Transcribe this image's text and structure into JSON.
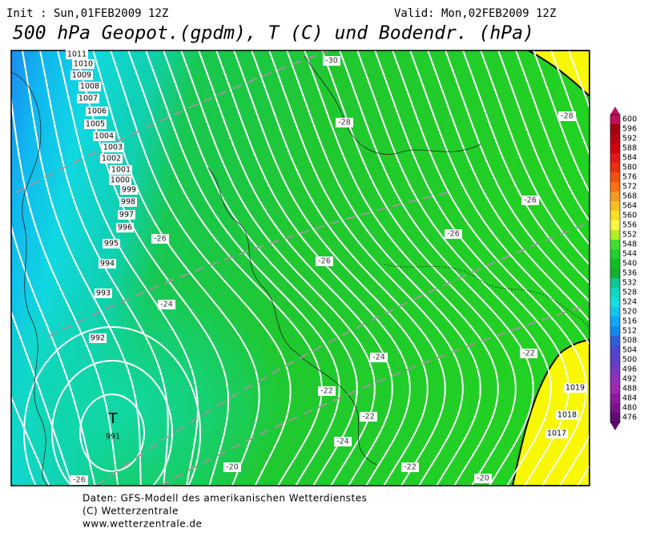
{
  "header": {
    "init": "Init : Sun,01FEB2009 12Z",
    "valid": "Valid: Mon,02FEB2009 12Z",
    "title": "500 hPa Geopot.(gpdm), T (C) und Bodendr. (hPa)"
  },
  "colorbar": {
    "labels": [
      600,
      596,
      592,
      588,
      584,
      580,
      576,
      572,
      568,
      564,
      560,
      556,
      552,
      548,
      544,
      540,
      536,
      532,
      528,
      524,
      520,
      516,
      512,
      508,
      504,
      500,
      496,
      492,
      488,
      484,
      480,
      476
    ],
    "colors": [
      "#c0105a",
      "#a00010",
      "#b80010",
      "#d00010",
      "#e01818",
      "#e83010",
      "#f05010",
      "#f87010",
      "#f89820",
      "#f8c020",
      "#f8e020",
      "#f8f840",
      "#b0f020",
      "#40e030",
      "#20d030",
      "#10c020",
      "#10b030",
      "#10c890",
      "#10d8c0",
      "#10e0e0",
      "#10c8f0",
      "#10a8f8",
      "#1088f0",
      "#3060d8",
      "#4848d0",
      "#6040c8",
      "#7838c0",
      "#9030b8",
      "#a028b0",
      "#8c1c9c",
      "#781488",
      "#600c70"
    ]
  },
  "map": {
    "isobar_labels": [
      "1011",
      "1010",
      "1009",
      "1008",
      "1007",
      "1006",
      "1005",
      "1004",
      "1003",
      "1002",
      "1001",
      "1000",
      "999",
      "998",
      "997",
      "996",
      "995",
      "994",
      "993",
      "992",
      "991",
      "1019",
      "1018",
      "1017"
    ],
    "temperature_labels": [
      "-30",
      "-28",
      "-28",
      "-26",
      "-26",
      "-26",
      "-26",
      "-26",
      "-24",
      "-24",
      "-24",
      "-22",
      "-22",
      "-22",
      "-22",
      "-20",
      "-20"
    ],
    "low_marker": "T"
  },
  "footer": {
    "line1": "Daten: GFS-Modell des amerikanischen Wetterdienstes",
    "line2": "(C) Wetterzentrale",
    "line3": "www.wetterzentrale.de"
  }
}
